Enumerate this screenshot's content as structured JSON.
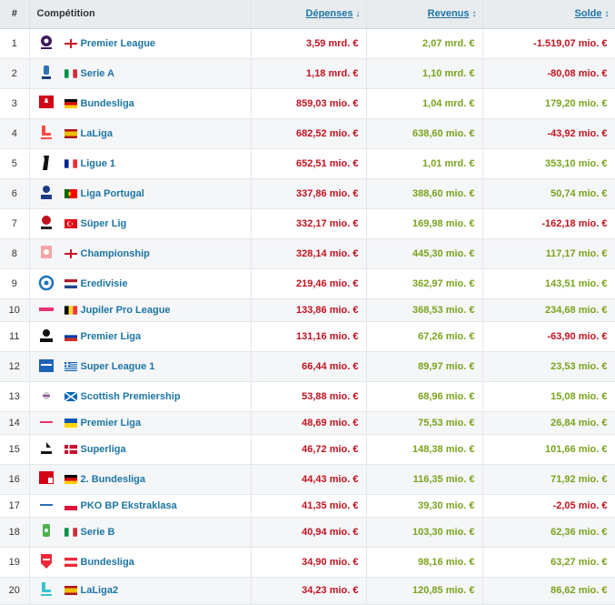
{
  "header": {
    "rank": "#",
    "competition": "Compétition",
    "expenses": "Dépenses",
    "revenue": "Revenus",
    "balance": "Solde"
  },
  "rows": [
    {
      "rank": "1",
      "league": "Premier League",
      "flag": "eng",
      "logo": "premier-league-logo",
      "expenses": "3,59 mrd. €",
      "revenue": "2,07 mrd. €",
      "balance": "-1.519,07 mio. €",
      "neg": true,
      "h": 33
    },
    {
      "rank": "2",
      "league": "Serie A",
      "flag": "ita",
      "logo": "serie-a-logo",
      "expenses": "1,18 mrd. €",
      "revenue": "1,10 mrd. €",
      "balance": "-80,08 mio. €",
      "neg": true,
      "h": 33
    },
    {
      "rank": "3",
      "league": "Bundesliga",
      "flag": "ger",
      "logo": "bundesliga-logo",
      "expenses": "859,03 mio. €",
      "revenue": "1,04 mrd. €",
      "balance": "179,20 mio. €",
      "neg": false,
      "h": 33
    },
    {
      "rank": "4",
      "league": "LaLiga",
      "flag": "esp",
      "logo": "laliga-logo",
      "expenses": "682,52 mio. €",
      "revenue": "638,60 mio. €",
      "balance": "-43,92 mio. €",
      "neg": true,
      "h": 33
    },
    {
      "rank": "5",
      "league": "Ligue 1",
      "flag": "fra",
      "logo": "ligue-1-logo",
      "expenses": "652,51 mio. €",
      "revenue": "1,01 mrd. €",
      "balance": "353,10 mio. €",
      "neg": false,
      "h": 33
    },
    {
      "rank": "6",
      "league": "Liga Portugal",
      "flag": "por",
      "logo": "liga-portugal-logo",
      "expenses": "337,86 mio. €",
      "revenue": "388,60 mio. €",
      "balance": "50,74 mio. €",
      "neg": false,
      "h": 33
    },
    {
      "rank": "7",
      "league": "Süper Lig",
      "flag": "tur",
      "logo": "super-lig-logo",
      "expenses": "332,17 mio. €",
      "revenue": "169,98 mio. €",
      "balance": "-162,18 mio. €",
      "neg": true,
      "h": 33
    },
    {
      "rank": "8",
      "league": "Championship",
      "flag": "eng",
      "logo": "championship-logo",
      "expenses": "328,14 mio. €",
      "revenue": "445,30 mio. €",
      "balance": "117,17 mio. €",
      "neg": false,
      "h": 33
    },
    {
      "rank": "9",
      "league": "Eredivisie",
      "flag": "ned",
      "logo": "eredivisie-logo",
      "expenses": "219,46 mio. €",
      "revenue": "362,97 mio. €",
      "balance": "143,51 mio. €",
      "neg": false,
      "h": 33
    },
    {
      "rank": "10",
      "league": "Jupiler Pro League",
      "flag": "bel",
      "logo": "jupiler-pro-league-logo",
      "expenses": "133,86 mio. €",
      "revenue": "368,53 mio. €",
      "balance": "234,68 mio. €",
      "neg": false,
      "h": 25
    },
    {
      "rank": "11",
      "league": "Premier Liga",
      "flag": "rus",
      "logo": "premier-liga-russia-logo",
      "expenses": "131,16 mio. €",
      "revenue": "67,26 mio. €",
      "balance": "-63,90 mio. €",
      "neg": true,
      "h": 33
    },
    {
      "rank": "12",
      "league": "Super League 1",
      "flag": "gre",
      "logo": "super-league-1-logo",
      "expenses": "66,44 mio. €",
      "revenue": "89,97 mio. €",
      "balance": "23,53 mio. €",
      "neg": false,
      "h": 33
    },
    {
      "rank": "13",
      "league": "Scottish Premiership",
      "flag": "sco",
      "logo": "scottish-premiership-logo",
      "expenses": "53,88 mio. €",
      "revenue": "68,96 mio. €",
      "balance": "15,08 mio. €",
      "neg": false,
      "h": 33
    },
    {
      "rank": "14",
      "league": "Premier Liga",
      "flag": "ukr",
      "logo": "premier-liga-ukraine-logo",
      "expenses": "48,69 mio. €",
      "revenue": "75,53 mio. €",
      "balance": "26,84 mio. €",
      "neg": false,
      "h": 25
    },
    {
      "rank": "15",
      "league": "Superliga",
      "flag": "den",
      "logo": "superliga-logo",
      "expenses": "46,72 mio. €",
      "revenue": "148,38 mio. €",
      "balance": "101,66 mio. €",
      "neg": false,
      "h": 33
    },
    {
      "rank": "16",
      "league": "2. Bundesliga",
      "flag": "ger",
      "logo": "2-bundesliga-logo",
      "expenses": "44,43 mio. €",
      "revenue": "116,35 mio. €",
      "balance": "71,92 mio. €",
      "neg": false,
      "h": 33
    },
    {
      "rank": "17",
      "league": "PKO BP Ekstraklasa",
      "flag": "pol",
      "logo": "ekstraklasa-logo",
      "expenses": "41,35 mio. €",
      "revenue": "39,30 mio. €",
      "balance": "-2,05 mio. €",
      "neg": true,
      "h": 25
    },
    {
      "rank": "18",
      "league": "Serie B",
      "flag": "ita",
      "logo": "serie-b-logo",
      "expenses": "40,94 mio. €",
      "revenue": "103,30 mio. €",
      "balance": "62,36 mio. €",
      "neg": false,
      "h": 33
    },
    {
      "rank": "19",
      "league": "Bundesliga",
      "flag": "aut",
      "logo": "austrian-bundesliga-logo",
      "expenses": "34,90 mio. €",
      "revenue": "98,16 mio. €",
      "balance": "63,27 mio. €",
      "neg": false,
      "h": 33
    },
    {
      "rank": "20",
      "league": "LaLiga2",
      "flag": "esp",
      "logo": "laliga2-logo",
      "expenses": "34,23 mio. €",
      "revenue": "120,85 mio. €",
      "balance": "86,62 mio. €",
      "neg": false,
      "h": 30
    }
  ],
  "colors": {
    "link": "#1d75a3",
    "expenses": "#c1121f",
    "revenue": "#7aa31d",
    "negative": "#c1121f",
    "positive": "#7aa31d"
  }
}
